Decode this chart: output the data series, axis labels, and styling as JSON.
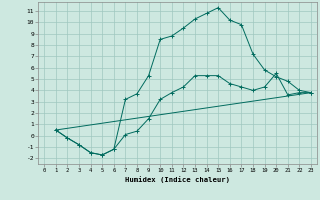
{
  "xlabel": "Humidex (Indice chaleur)",
  "bg_color": "#cde8e0",
  "grid_color": "#a0c8c0",
  "line_color": "#006b5e",
  "xlim": [
    -0.5,
    23.5
  ],
  "ylim": [
    -2.5,
    11.8
  ],
  "xticks": [
    0,
    1,
    2,
    3,
    4,
    5,
    6,
    7,
    8,
    9,
    10,
    11,
    12,
    13,
    14,
    15,
    16,
    17,
    18,
    19,
    20,
    21,
    22,
    23
  ],
  "yticks": [
    -2,
    -1,
    0,
    1,
    2,
    3,
    4,
    5,
    6,
    7,
    8,
    9,
    10,
    11
  ],
  "line1_x": [
    1,
    2,
    3,
    4,
    5,
    6,
    7,
    8,
    9,
    10,
    11,
    12,
    13,
    14,
    15,
    16,
    17,
    18,
    19,
    20,
    21,
    22,
    23
  ],
  "line1_y": [
    0.5,
    -0.2,
    -0.8,
    -1.5,
    -1.7,
    -1.2,
    3.2,
    3.7,
    5.3,
    8.5,
    8.8,
    9.5,
    10.3,
    10.8,
    11.3,
    10.2,
    9.8,
    7.2,
    5.8,
    5.2,
    4.8,
    4.0,
    3.8
  ],
  "line2_x": [
    1,
    2,
    3,
    4,
    5,
    6,
    7,
    8,
    9,
    10,
    11,
    12,
    13,
    14,
    15,
    16,
    17,
    18,
    19,
    20,
    21,
    22,
    23
  ],
  "line2_y": [
    0.5,
    -0.2,
    -0.8,
    -1.5,
    -1.7,
    -1.2,
    0.1,
    0.4,
    1.5,
    3.2,
    3.8,
    4.3,
    5.3,
    5.3,
    5.3,
    4.6,
    4.3,
    4.0,
    4.3,
    5.5,
    3.6,
    3.8,
    3.8
  ],
  "line3_x": [
    1,
    23
  ],
  "line3_y": [
    0.5,
    3.8
  ]
}
